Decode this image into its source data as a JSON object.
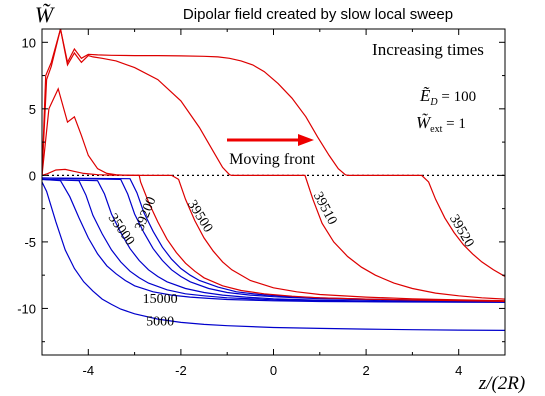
{
  "chart_data": {
    "type": "line",
    "title": "Dipolar field created by slow local sweep",
    "ylabel": "W̃",
    "xlabel": "z/(2R)",
    "xlim": [
      -5,
      5
    ],
    "ylim": [
      -13.5,
      11
    ],
    "xticks": [
      -4,
      -2,
      0,
      2,
      4
    ],
    "yticks": [
      -10,
      -5,
      0,
      5,
      10
    ],
    "grid": false,
    "zero_line": "dotted",
    "annotations": {
      "increasing_times": "Increasing times",
      "moving_front": "Moving front",
      "ed_symbol": "Ẽ",
      "ed_sub": "D",
      "ed_value": " = 100",
      "wext_symbol": "W̃",
      "wext_sub": "ext",
      "wext_value": " = 1"
    },
    "series": [
      {
        "name": "5000",
        "color": "#0000cc",
        "x": [
          -5,
          -4.9,
          -4.7,
          -4.5,
          -4.3,
          -4.1,
          -3.9,
          -3.7,
          -3.5,
          -3.3,
          -3,
          -2.5,
          -2,
          -1.5,
          -1,
          0,
          1,
          2,
          3,
          4,
          5
        ],
        "y": [
          -0.5,
          -1.2,
          -3.5,
          -5.6,
          -7,
          -8,
          -8.7,
          -9.3,
          -9.7,
          -10.05,
          -10.4,
          -10.8,
          -11.05,
          -11.2,
          -11.3,
          -11.43,
          -11.5,
          -11.55,
          -11.6,
          -11.63,
          -11.65
        ]
      },
      {
        "name": "15000",
        "color": "#0000cc",
        "x": [
          -5,
          -4.6,
          -4.4,
          -4.2,
          -4,
          -3.8,
          -3.6,
          -3.4,
          -3.2,
          -3,
          -2.6,
          -2.2,
          -1.8,
          -1.4,
          -1,
          0,
          1,
          2,
          3,
          4,
          5
        ],
        "y": [
          -0.3,
          -0.4,
          -1.6,
          -3.2,
          -4.7,
          -5.9,
          -6.8,
          -7.4,
          -7.9,
          -8.3,
          -8.75,
          -9,
          -9.15,
          -9.25,
          -9.33,
          -9.43,
          -9.48,
          -9.5,
          -9.52,
          -9.53,
          -9.54
        ]
      },
      {
        "name": "",
        "color": "#0000cc",
        "x": [
          -5,
          -4.2,
          -4.05,
          -3.9,
          -3.7,
          -3.5,
          -3.3,
          -3.1,
          -2.9,
          -2.7,
          -2.3,
          -1.9,
          -1.5,
          -1,
          0,
          1,
          2,
          3,
          4,
          5
        ],
        "y": [
          -0.3,
          -0.4,
          -1.5,
          -3,
          -4.4,
          -5.6,
          -6.5,
          -7.2,
          -7.7,
          -8.1,
          -8.6,
          -8.9,
          -9.05,
          -9.2,
          -9.35,
          -9.42,
          -9.47,
          -9.5,
          -9.52,
          -9.53
        ]
      },
      {
        "name": "",
        "color": "#0000cc",
        "x": [
          -5,
          -3.8,
          -3.65,
          -3.5,
          -3.3,
          -3.1,
          -2.9,
          -2.7,
          -2.5,
          -2.3,
          -1.9,
          -1.5,
          -1.1,
          -0.6,
          0,
          1,
          2,
          3,
          4,
          5
        ],
        "y": [
          -0.3,
          -0.4,
          -1.4,
          -2.9,
          -4.3,
          -5.5,
          -6.4,
          -7.1,
          -7.6,
          -8,
          -8.5,
          -8.8,
          -9,
          -9.15,
          -9.28,
          -9.38,
          -9.44,
          -9.48,
          -9.5,
          -9.52
        ]
      },
      {
        "name": "35000",
        "color": "#0000cc",
        "x": [
          -5,
          -3.3,
          -3.15,
          -3,
          -2.8,
          -2.6,
          -2.4,
          -2.2,
          -2,
          -1.8,
          -1.4,
          -1,
          -0.5,
          0,
          0.5,
          1,
          2,
          3,
          4,
          5
        ],
        "y": [
          -0.2,
          -0.3,
          -1.4,
          -2.9,
          -4.3,
          -5.5,
          -6.4,
          -7.1,
          -7.6,
          -8,
          -8.5,
          -8.8,
          -9,
          -9.12,
          -9.2,
          -9.27,
          -9.35,
          -9.41,
          -9.45,
          -9.48
        ]
      },
      {
        "name": "",
        "color": "#0000cc",
        "x": [
          -5,
          -3.1,
          -2.95,
          -2.8,
          -2.6,
          -2.4,
          -2.2,
          -2,
          -1.8,
          -1.6,
          -1.2,
          -0.8,
          -0.3,
          0.3,
          1,
          2,
          3,
          4,
          5
        ],
        "y": [
          -0.2,
          -0.25,
          -1.3,
          -2.8,
          -4.2,
          -5.4,
          -6.3,
          -7,
          -7.5,
          -7.9,
          -8.4,
          -8.75,
          -8.95,
          -9.1,
          -9.2,
          -9.3,
          -9.36,
          -9.41,
          -9.45
        ]
      },
      {
        "name": "39200",
        "color": "#dd0000",
        "x": [
          -5,
          -4.9,
          -4.7,
          -4.5,
          -4.3,
          -4.1,
          -3.8,
          -3.5,
          -3.2,
          -2.9,
          -2.87,
          -2.7,
          -2.5,
          -2.3,
          -2.1,
          -1.9,
          -1.7,
          -1.5,
          -1.1,
          -0.7,
          -0.2,
          0.4,
          1,
          2,
          3,
          4,
          5
        ],
        "y": [
          0,
          0.1,
          0.4,
          0.45,
          0.3,
          0.15,
          0.05,
          0.02,
          0.01,
          0,
          -0.5,
          -2,
          -3.5,
          -4.8,
          -5.8,
          -6.6,
          -7.2,
          -7.7,
          -8.3,
          -8.65,
          -8.9,
          -9.08,
          -9.2,
          -9.3,
          -9.37,
          -9.42,
          -9.47
        ]
      },
      {
        "name": "39500",
        "color": "#dd0000",
        "x": [
          -5,
          -4.85,
          -4.65,
          -4.45,
          -4.3,
          -4.15,
          -4,
          -3.8,
          -3.6,
          -3.4,
          -3.2,
          -3,
          -2.8,
          -2.6,
          -2.4,
          -2.2,
          -2.05,
          -1.9,
          -1.7,
          -1.5,
          -1.3,
          -1.1,
          -0.9,
          -0.5,
          0,
          0.5,
          1,
          2,
          3,
          4,
          5
        ],
        "y": [
          0,
          5,
          6.5,
          4,
          4.4,
          3,
          1.5,
          0.5,
          0.15,
          0.05,
          0.01,
          0,
          0,
          0,
          0,
          0,
          -0.3,
          -1.8,
          -3.4,
          -4.7,
          -5.7,
          -6.5,
          -7.1,
          -7.9,
          -8.45,
          -8.75,
          -8.95,
          -9.15,
          -9.28,
          -9.36,
          -9.42
        ]
      },
      {
        "name": "39510",
        "color": "#dd0000",
        "x": [
          -5,
          -4.92,
          -4.8,
          -4.6,
          -4.45,
          -4.3,
          -4.15,
          -4,
          -3.9,
          -3.7,
          -3.4,
          -3,
          -2.5,
          -2,
          -1.6,
          -1.3,
          -1.1,
          -0.95,
          -0.9,
          -0.5,
          0,
          0.5,
          0.68,
          0.85,
          1.05,
          1.3,
          1.6,
          1.9,
          2.2,
          2.6,
          3,
          3.5,
          4,
          4.5,
          5
        ],
        "y": [
          0,
          7.5,
          8.5,
          11,
          8.3,
          9.2,
          8.5,
          9,
          8.9,
          8.8,
          8.6,
          8.1,
          7.2,
          5.6,
          3.6,
          1.8,
          0.6,
          0.05,
          0,
          0,
          0,
          0,
          0,
          -1.8,
          -3.6,
          -5,
          -6.1,
          -6.9,
          -7.5,
          -8.1,
          -8.5,
          -8.85,
          -9.05,
          -9.2,
          -9.3
        ]
      },
      {
        "name": "39520",
        "color": "#dd0000",
        "x": [
          -5,
          -4.9,
          -4.8,
          -4.6,
          -4.45,
          -4.3,
          -4.15,
          -4,
          -3.8,
          -3.5,
          -3,
          -2.5,
          -2,
          -1.5,
          -1.2,
          -0.95,
          -0.7,
          -0.45,
          -0.2,
          0.1,
          0.4,
          0.7,
          0.95,
          1.2,
          1.4,
          1.55,
          1.6,
          2,
          2.5,
          3,
          3.2,
          3.35,
          3.5,
          3.7,
          3.9,
          4.1,
          4.3,
          4.5,
          4.75,
          5
        ],
        "y": [
          0,
          7.2,
          8.2,
          11,
          8.5,
          9.5,
          8.8,
          9.1,
          9.05,
          9.02,
          9,
          9,
          8.98,
          8.95,
          8.9,
          8.8,
          8.6,
          8.3,
          7.8,
          6.9,
          5.8,
          4.4,
          2.9,
          1.5,
          0.5,
          0.05,
          0,
          0,
          0,
          0,
          0,
          -0.5,
          -1.8,
          -3.2,
          -4.3,
          -5.2,
          -5.9,
          -6.5,
          -7.1,
          -7.6
        ]
      }
    ],
    "curve_labels": [
      {
        "text": "5000",
        "x": -2.45,
        "y": -11.05,
        "rotate": 0
      },
      {
        "text": "15000",
        "x": -2.45,
        "y": -9.35,
        "rotate": 0
      },
      {
        "text": "35000",
        "x": -3.3,
        "y": -4.1,
        "rotate": 55
      },
      {
        "text": "39200",
        "x": -2.75,
        "y": -2.9,
        "rotate": -68
      },
      {
        "text": "39500",
        "x": -1.6,
        "y": -3.1,
        "rotate": 58
      },
      {
        "text": "39510",
        "x": 1.1,
        "y": -2.5,
        "rotate": 62
      },
      {
        "text": "39520",
        "x": 4.05,
        "y": -4.2,
        "rotate": 60
      }
    ]
  }
}
